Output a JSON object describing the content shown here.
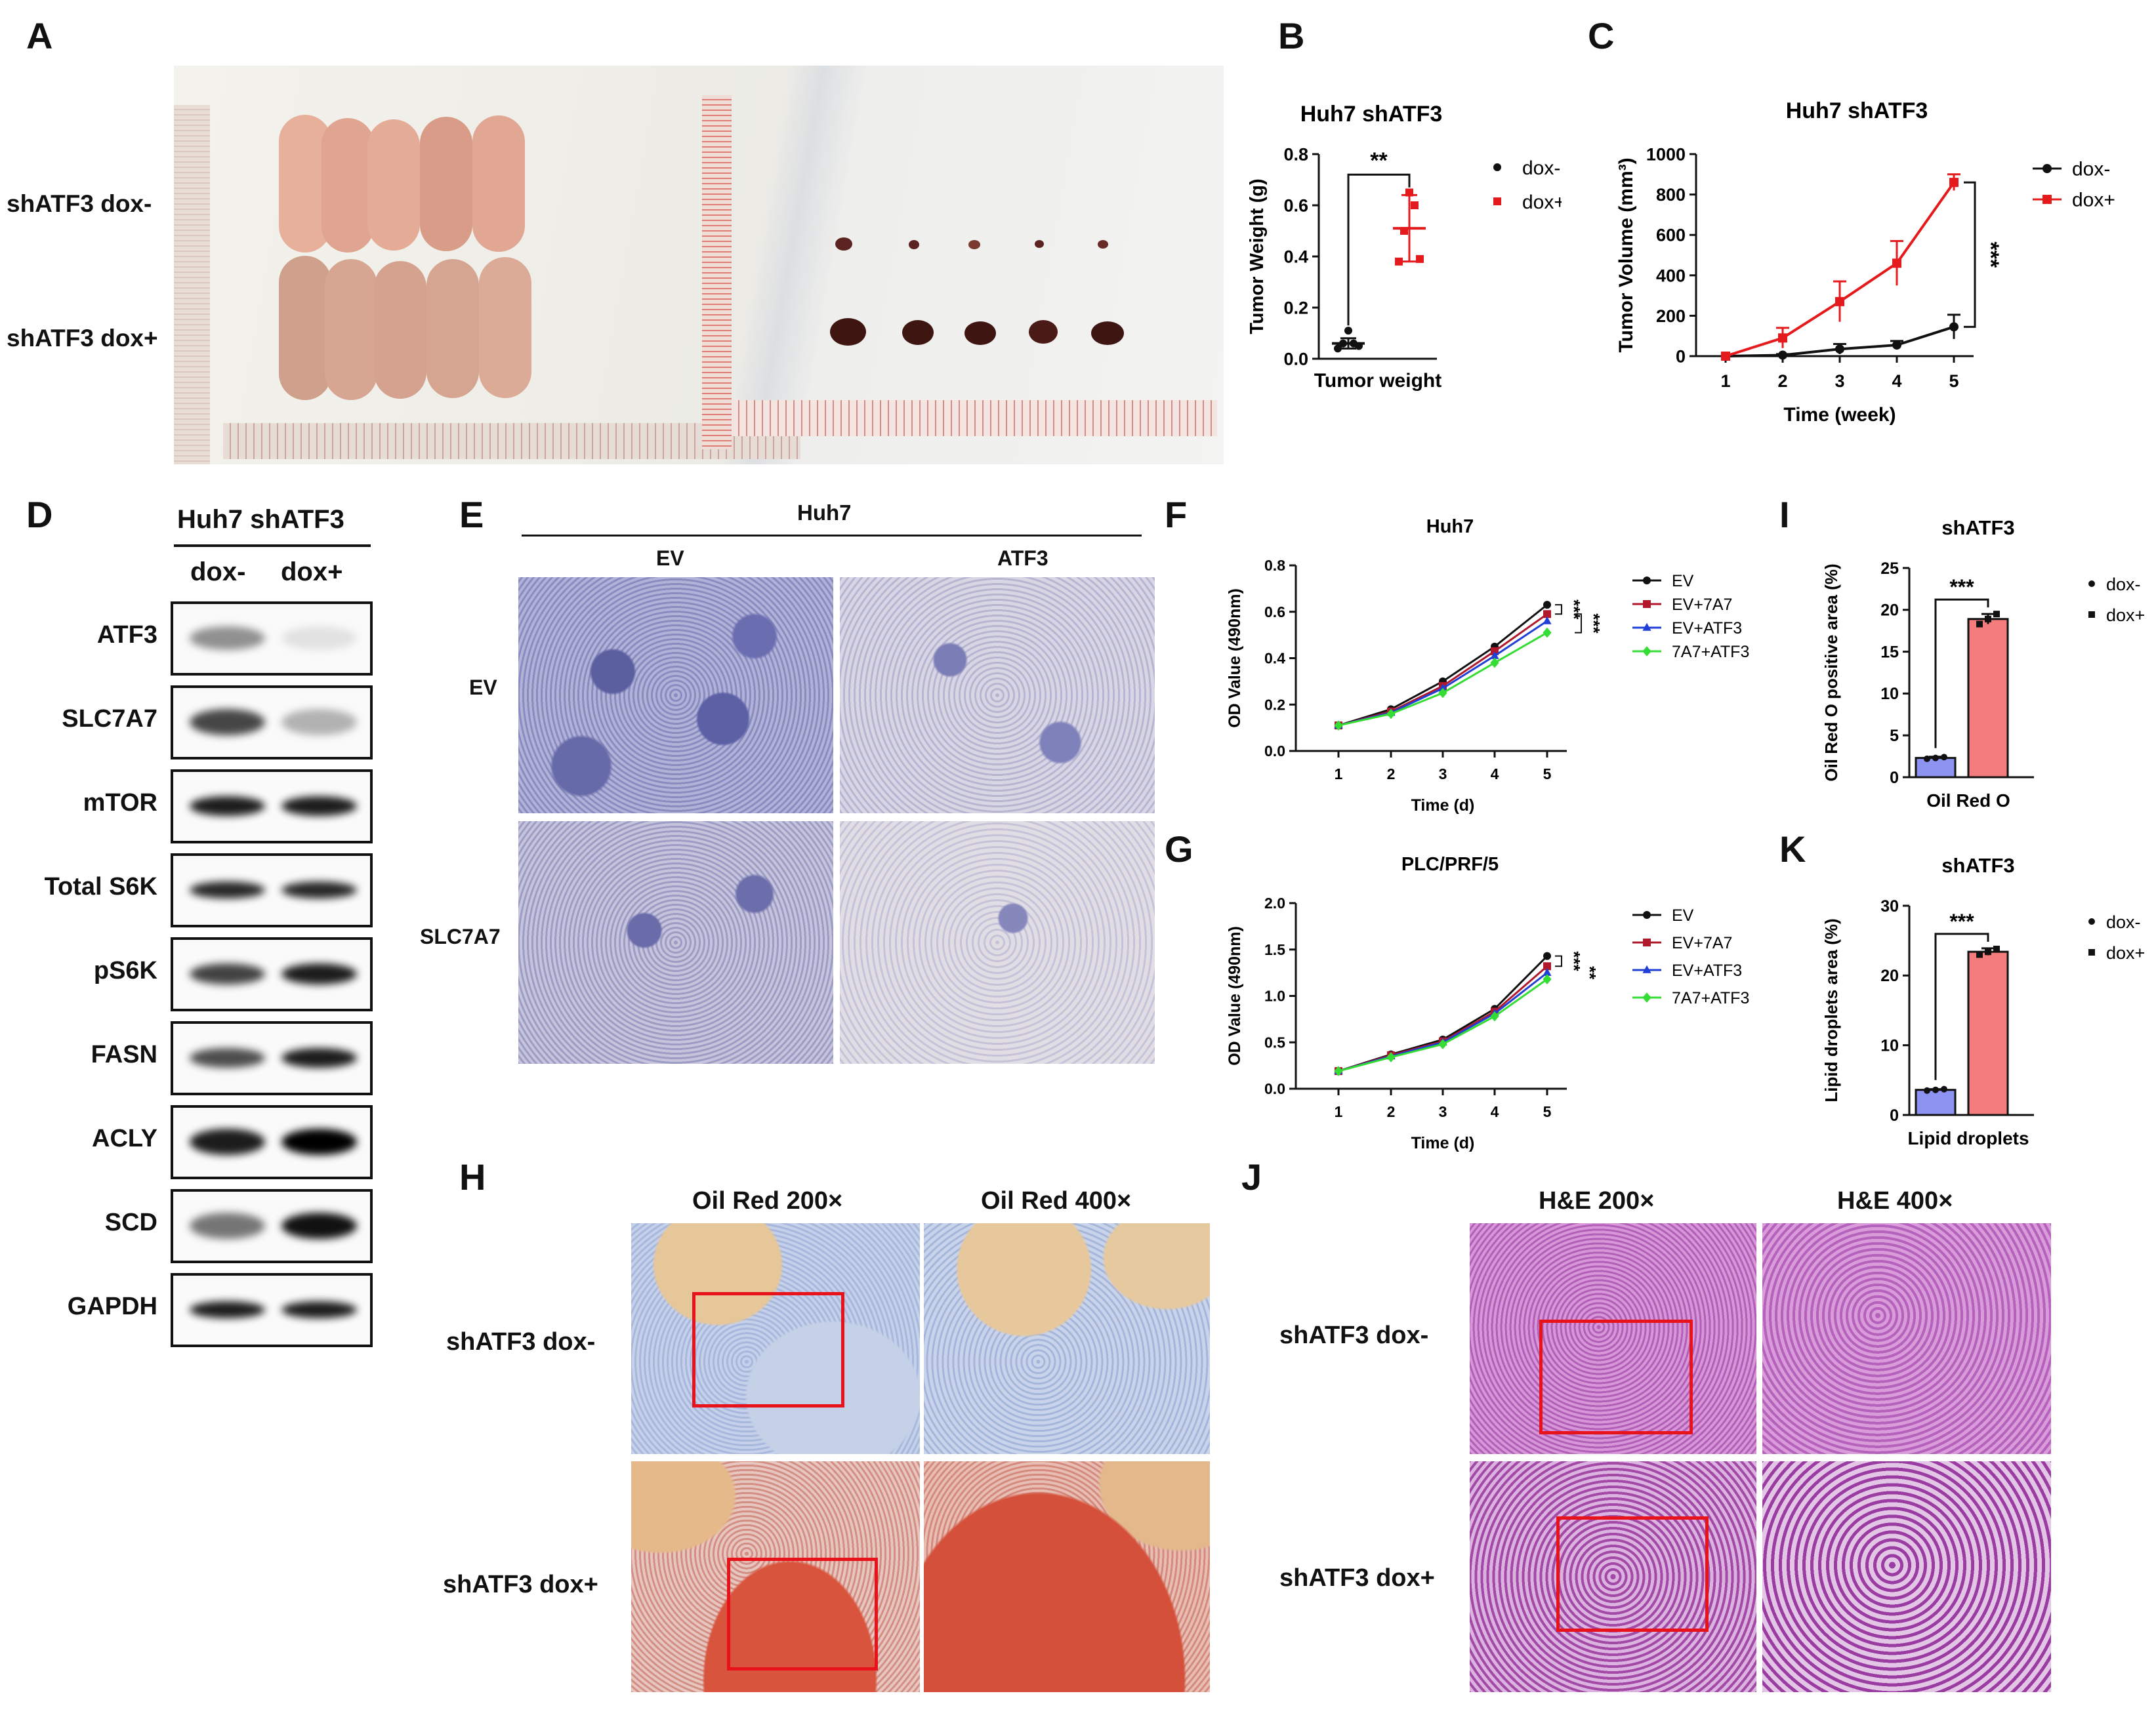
{
  "panels": {
    "A": "A",
    "B": "B",
    "C": "C",
    "D": "D",
    "E": "E",
    "F": "F",
    "G": "G",
    "H": "H",
    "I": "I",
    "J": "J",
    "K": "K"
  },
  "panelA": {
    "row_top": "shATF3 dox-",
    "row_bottom": "shATF3 dox+"
  },
  "panelD": {
    "header": "Huh7 shATF3",
    "col1": "dox-",
    "col2": "dox+",
    "blots": [
      "ATF3",
      "SLC7A7",
      "mTOR",
      "Total S6K",
      "pS6K",
      "FASN",
      "ACLY",
      "SCD",
      "GAPDH"
    ]
  },
  "panelE": {
    "header": "Huh7",
    "col1": "EV",
    "col2": "ATF3",
    "row1": "EV",
    "row2": "SLC7A7"
  },
  "panelH": {
    "col1": "Oil Red 200×",
    "col2": "Oil Red 400×",
    "row1": "shATF3 dox-",
    "row2": "shATF3 dox+"
  },
  "panelJ": {
    "col1": "H&E 200×",
    "col2": "H&E 400×",
    "row1": "shATF3 dox-",
    "row2": "shATF3 dox+"
  },
  "colors": {
    "black": "#111111",
    "red": "#e41a1c",
    "darkred": "#b2182b",
    "blue": "#1f3fd6",
    "green": "#33dd33",
    "bar_blue": "#8c93f0",
    "bar_red": "#f47c7c",
    "box_red": "#e8121a"
  },
  "chart_data": [
    {
      "id": "B",
      "type": "scatter",
      "title": "Huh7 shATF3",
      "ylabel": "Tumor Weight (g)",
      "xlabel": "Tumor weight",
      "ylim": [
        0,
        0.8
      ],
      "yticks": [
        "0.0",
        "0.2",
        "0.4",
        "0.6",
        "0.8"
      ],
      "series": [
        {
          "name": "dox-",
          "mean": 0.06,
          "sd": 0.02,
          "points": [
            0.04,
            0.05,
            0.06,
            0.06,
            0.11
          ]
        },
        {
          "name": "dox+",
          "mean": 0.51,
          "sd": 0.13,
          "points": [
            0.38,
            0.39,
            0.5,
            0.6,
            0.65
          ]
        }
      ],
      "significance": "**"
    },
    {
      "id": "C",
      "type": "line",
      "title": "Huh7 shATF3",
      "ylabel": "Tumor Volume (mm³)",
      "xlabel": "Time (week)",
      "ylim": [
        0,
        1000
      ],
      "x": [
        1,
        2,
        3,
        4,
        5
      ],
      "yticks": [
        "0",
        "200",
        "400",
        "600",
        "800",
        "1000"
      ],
      "series": [
        {
          "name": "dox-",
          "values": [
            0,
            5,
            35,
            55,
            145
          ],
          "err": [
            0,
            5,
            25,
            20,
            60
          ]
        },
        {
          "name": "dox+",
          "values": [
            0,
            90,
            270,
            460,
            860
          ],
          "err": [
            0,
            50,
            100,
            110,
            40
          ]
        }
      ],
      "significance": "***"
    },
    {
      "id": "F",
      "type": "line",
      "title": "Huh7",
      "ylabel": "OD Value (490nm)",
      "xlabel": "Time (d)",
      "ylim": [
        0,
        0.8
      ],
      "x": [
        1,
        2,
        3,
        4,
        5
      ],
      "yticks": [
        "0.0",
        "0.2",
        "0.4",
        "0.6",
        "0.8"
      ],
      "series": [
        {
          "name": "EV",
          "values": [
            0.11,
            0.18,
            0.3,
            0.45,
            0.63
          ]
        },
        {
          "name": "EV+7A7",
          "values": [
            0.11,
            0.17,
            0.28,
            0.43,
            0.59
          ]
        },
        {
          "name": "EV+ATF3",
          "values": [
            0.11,
            0.165,
            0.27,
            0.41,
            0.56
          ]
        },
        {
          "name": "7A7+ATF3",
          "values": [
            0.11,
            0.16,
            0.25,
            0.38,
            0.51
          ]
        }
      ],
      "significance": [
        "***",
        "***"
      ]
    },
    {
      "id": "G",
      "type": "line",
      "title": "PLC/PRF/5",
      "ylabel": "OD Value (490nm)",
      "xlabel": "Time (d)",
      "ylim": [
        0,
        2.0
      ],
      "x": [
        1,
        2,
        3,
        4,
        5
      ],
      "yticks": [
        "0.0",
        "0.5",
        "1.0",
        "1.5",
        "2.0"
      ],
      "series": [
        {
          "name": "EV",
          "values": [
            0.19,
            0.37,
            0.53,
            0.86,
            1.43
          ]
        },
        {
          "name": "EV+7A7",
          "values": [
            0.19,
            0.36,
            0.51,
            0.83,
            1.32
          ]
        },
        {
          "name": "EV+ATF3",
          "values": [
            0.19,
            0.35,
            0.5,
            0.81,
            1.25
          ]
        },
        {
          "name": "7A7+ATF3",
          "values": [
            0.19,
            0.34,
            0.48,
            0.78,
            1.18
          ]
        }
      ],
      "significance": [
        "***",
        "**"
      ]
    },
    {
      "id": "I",
      "type": "bar",
      "title": "shATF3",
      "ylabel": "Oil Red O positive area (%)",
      "xlabel": "Oil Red O",
      "ylim": [
        0,
        25
      ],
      "yticks": [
        "0",
        "5",
        "10",
        "15",
        "20",
        "25"
      ],
      "series": [
        {
          "name": "dox-",
          "value": 2.3,
          "sd": 0.15,
          "points": [
            2.2,
            2.3,
            2.4
          ]
        },
        {
          "name": "dox+",
          "value": 18.9,
          "sd": 0.6,
          "points": [
            18.3,
            18.9,
            19.5
          ]
        }
      ],
      "significance": "***"
    },
    {
      "id": "K",
      "type": "bar",
      "title": "shATF3",
      "ylabel": "Lipid droplets area (%)",
      "xlabel": "Lipid droplets",
      "ylim": [
        0,
        30
      ],
      "yticks": [
        "0",
        "10",
        "20",
        "30"
      ],
      "series": [
        {
          "name": "dox-",
          "value": 3.6,
          "sd": 0.1,
          "points": [
            3.5,
            3.6,
            3.7
          ]
        },
        {
          "name": "dox+",
          "value": 23.4,
          "sd": 0.5,
          "points": [
            23.0,
            23.4,
            23.8
          ]
        }
      ],
      "significance": "***"
    }
  ]
}
